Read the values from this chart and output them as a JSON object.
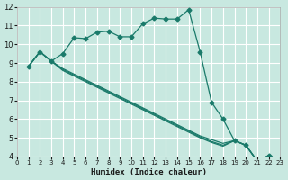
{
  "title": "",
  "xlabel": "Humidex (Indice chaleur)",
  "ylabel": "",
  "bg_color": "#c8e8e0",
  "grid_color": "#ffffff",
  "line_color": "#1a7a6a",
  "xlim": [
    0,
    23
  ],
  "ylim": [
    4,
    12
  ],
  "xticks": [
    0,
    1,
    2,
    3,
    4,
    5,
    6,
    7,
    8,
    9,
    10,
    11,
    12,
    13,
    14,
    15,
    16,
    17,
    18,
    19,
    20,
    21,
    22,
    23
  ],
  "yticks": [
    4,
    5,
    6,
    7,
    8,
    9,
    10,
    11,
    12
  ],
  "series": [
    {
      "x": [
        1,
        2,
        3,
        4,
        5,
        6,
        7,
        8,
        9,
        10,
        11,
        12,
        13,
        14,
        15,
        16,
        17,
        18,
        19,
        20,
        21,
        22,
        23
      ],
      "y": [
        8.8,
        9.6,
        9.1,
        9.5,
        10.35,
        10.3,
        10.65,
        10.7,
        10.4,
        10.4,
        11.1,
        11.4,
        11.35,
        11.35,
        11.85,
        9.6,
        6.9,
        6.0,
        4.85,
        4.6,
        3.75,
        4.05,
        3.8
      ],
      "marker": "D"
    },
    {
      "x": [
        1,
        2,
        3,
        4,
        5,
        6,
        7,
        8,
        9,
        10,
        11,
        12,
        13,
        14,
        15,
        16,
        17,
        18,
        19,
        20,
        21,
        22,
        23
      ],
      "y": [
        8.8,
        9.6,
        9.1,
        8.7,
        8.4,
        8.1,
        7.8,
        7.5,
        7.2,
        6.9,
        6.6,
        6.3,
        6.0,
        5.7,
        5.4,
        5.1,
        4.9,
        4.7,
        4.85,
        4.6,
        3.75,
        4.05,
        3.8
      ],
      "marker": null
    },
    {
      "x": [
        1,
        2,
        3,
        4,
        5,
        6,
        7,
        8,
        9,
        10,
        11,
        12,
        13,
        14,
        15,
        16,
        17,
        18,
        19,
        20,
        21,
        22,
        23
      ],
      "y": [
        8.8,
        9.6,
        9.1,
        8.65,
        8.35,
        8.05,
        7.75,
        7.45,
        7.15,
        6.85,
        6.55,
        6.25,
        5.95,
        5.65,
        5.35,
        5.05,
        4.8,
        4.6,
        4.85,
        4.6,
        3.75,
        4.05,
        3.8
      ],
      "marker": null
    },
    {
      "x": [
        1,
        2,
        3,
        4,
        5,
        6,
        7,
        8,
        9,
        10,
        11,
        12,
        13,
        14,
        15,
        16,
        17,
        18,
        19,
        20,
        21,
        22,
        23
      ],
      "y": [
        8.8,
        9.6,
        9.1,
        8.6,
        8.3,
        8.0,
        7.7,
        7.4,
        7.1,
        6.8,
        6.5,
        6.2,
        5.9,
        5.6,
        5.3,
        5.0,
        4.75,
        4.55,
        4.85,
        4.6,
        3.75,
        4.05,
        3.8
      ],
      "marker": null
    }
  ]
}
